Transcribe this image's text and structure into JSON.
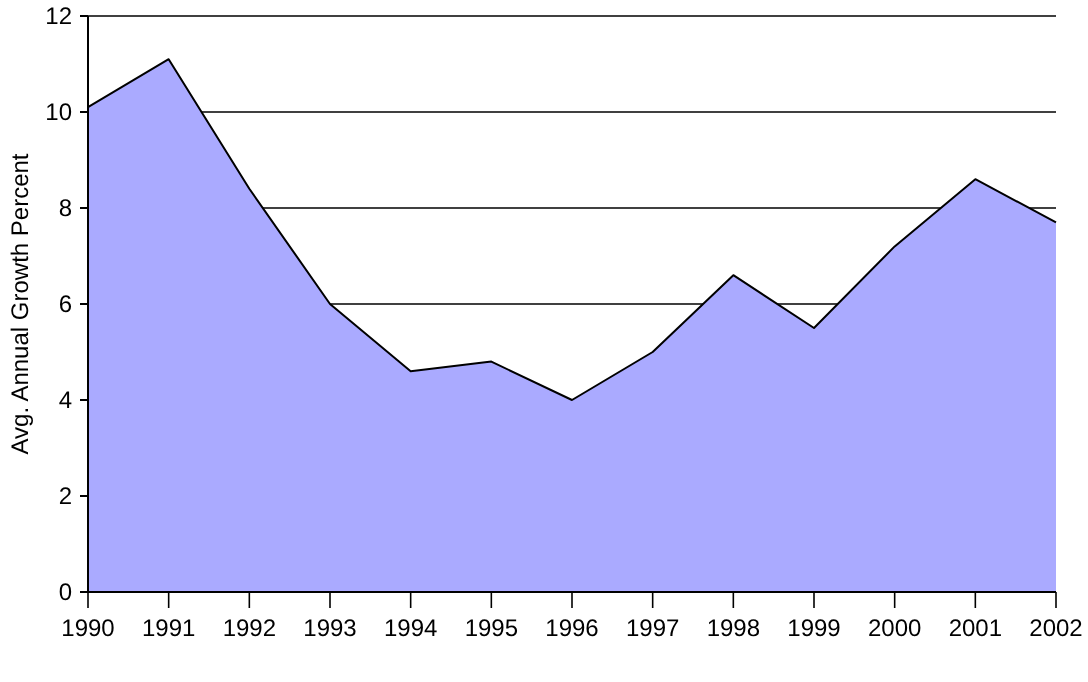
{
  "chart_data": {
    "type": "area",
    "ylabel": "Avg. Annual Growth Percent",
    "x": [
      1990,
      1991,
      1992,
      1993,
      1994,
      1995,
      1996,
      1997,
      1998,
      1999,
      2000,
      2001,
      2002
    ],
    "series": [
      {
        "color": "#aaaaff",
        "values": [
          10.1,
          11.1,
          8.4,
          6.0,
          4.6,
          4.8,
          4.0,
          5.0,
          6.6,
          5.5,
          7.2,
          8.6,
          7.7
        ]
      }
    ],
    "xlim": [
      1990,
      2002
    ],
    "xticks": [
      1990,
      1991,
      1992,
      1993,
      1994,
      1995,
      1996,
      1997,
      1998,
      1999,
      2000,
      2001,
      2002
    ],
    "ylim": [
      0,
      12
    ],
    "yticks": [
      0,
      2,
      4,
      6,
      8,
      10,
      12
    ],
    "grid": "y"
  }
}
